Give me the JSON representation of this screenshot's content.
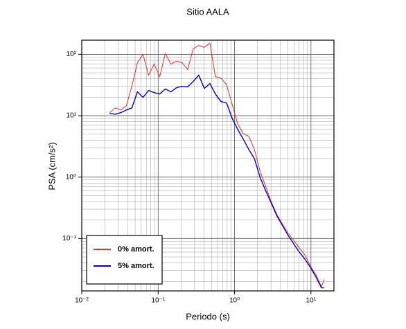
{
  "chart_data": {
    "type": "line",
    "title": "Sitio AALA",
    "xlabel": "Periodo (s)",
    "ylabel": "PSA (cm/s²)",
    "xscale": "log",
    "yscale": "log",
    "grid": true,
    "minor_grid": true,
    "legend_loc": "lower left",
    "xlim": [
      0.01,
      20
    ],
    "ylim": [
      0.014,
      170
    ],
    "xticks": [
      {
        "value": 0.01,
        "label": "10⁻²"
      },
      {
        "value": 0.1,
        "label": "10⁻¹"
      },
      {
        "value": 1,
        "label": "10⁰"
      },
      {
        "value": 10,
        "label": "10¹"
      }
    ],
    "yticks": [
      {
        "value": 0.1,
        "label": "10⁻¹"
      },
      {
        "value": 1,
        "label": "10⁰"
      },
      {
        "value": 10,
        "label": "10¹"
      },
      {
        "value": 100,
        "label": "10²"
      }
    ],
    "x": [
      0.0232,
      0.0274,
      0.0324,
      0.0383,
      0.0453,
      0.0536,
      0.0634,
      0.075,
      0.0887,
      0.105,
      0.124,
      0.147,
      0.174,
      0.206,
      0.243,
      0.288,
      0.34,
      0.402,
      0.475,
      0.562,
      0.665,
      0.787,
      0.931,
      1.1,
      1.3,
      1.54,
      1.82,
      2.16,
      2.55,
      3.02,
      3.57,
      4.22,
      4.99,
      5.9,
      6.98,
      8.26,
      9.77,
      11.6,
      13.7,
      14.9
    ],
    "series": [
      {
        "name": "0% amort.",
        "color": "#e03030",
        "values": [
          11.2,
          13.4,
          12.4,
          14.5,
          30.1,
          73.1,
          100,
          45.7,
          69.4,
          43.4,
          103,
          69.4,
          77.1,
          73.1,
          56.4,
          123,
          140,
          130,
          152,
          43.4,
          41.2,
          31.8,
          15.3,
          7.37,
          5.12,
          4.61,
          2.81,
          1.25,
          0.705,
          0.397,
          0.248,
          0.173,
          0.123,
          0.0946,
          0.0711,
          0.0547,
          0.0361,
          0.0257,
          0.0165,
          0.0214
        ]
      },
      {
        "name": "5% amort.",
        "color": "#0000cc",
        "values": [
          10.9,
          10.6,
          11.2,
          12.4,
          13.4,
          24.5,
          19.9,
          25.8,
          23.8,
          22.6,
          27.2,
          24.5,
          28.6,
          30.1,
          29.4,
          36.2,
          45.7,
          27.9,
          33.4,
          22.6,
          17.0,
          16.1,
          9.08,
          5.98,
          4.15,
          2.81,
          2.0,
          0.989,
          0.603,
          0.377,
          0.236,
          0.164,
          0.114,
          0.0832,
          0.0608,
          0.0468,
          0.0343,
          0.0238,
          0.0157,
          0.0157
        ]
      }
    ]
  }
}
